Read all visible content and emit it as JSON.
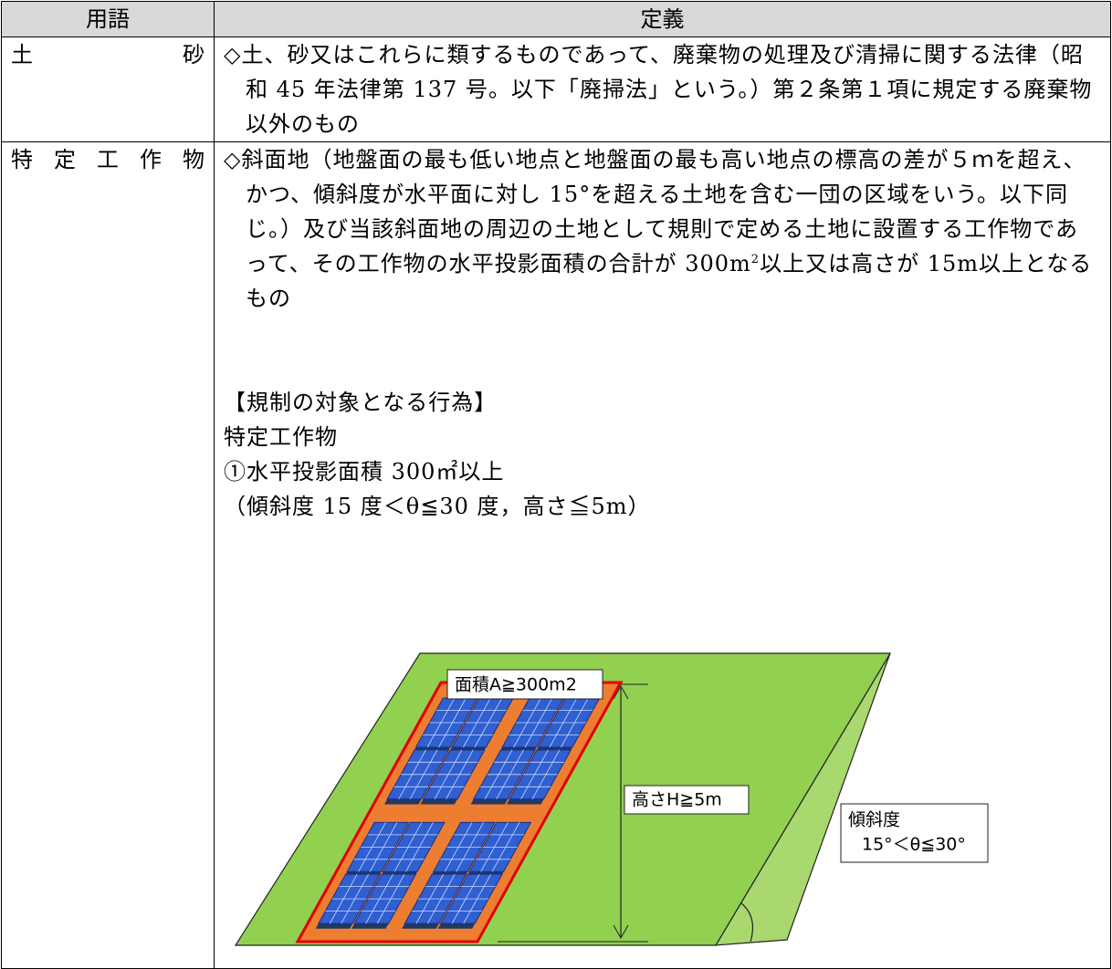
{
  "table": {
    "header": {
      "term": "用語",
      "definition": "定義"
    },
    "rows": [
      {
        "term": "土砂",
        "definition": "◇土、砂又はこれらに類するものであって、廃棄物の処理及び清掃に関する法律（昭和 45 年法律第 137 号。以下「廃掃法」という。）第２条第１項に規定する廃棄物以外のもの"
      },
      {
        "term": "特定工作物",
        "definition": {
          "before": "◇斜面地（地盤面の最も低い地点と地盤面の最も高い地点の標高の差が５ｍを超え、かつ、傾斜度が水平面に対し 15°を超える土地を含む一団の区域をいう。以下同じ。）及び当該斜面地の周辺の土地として規則で定める土地に設置する工作物であって、その工作物の水平投影面積の合計が 300m",
          "sup": "2",
          "after": "以上又は高さが 15m以上となるもの"
        },
        "section_title": "【規制の対象となる行為】",
        "subject": "特定工作物",
        "item": "①水平投影面積 300㎡以上",
        "condition": "（傾斜度 15 度＜θ≦30 度，高さ≦5m）",
        "diagram": {
          "area_label": "面積A≧300m2",
          "height_label": "高さH≧5m",
          "slope_label": "傾斜度",
          "slope_range": "15°＜θ≦30°"
        }
      }
    ]
  }
}
